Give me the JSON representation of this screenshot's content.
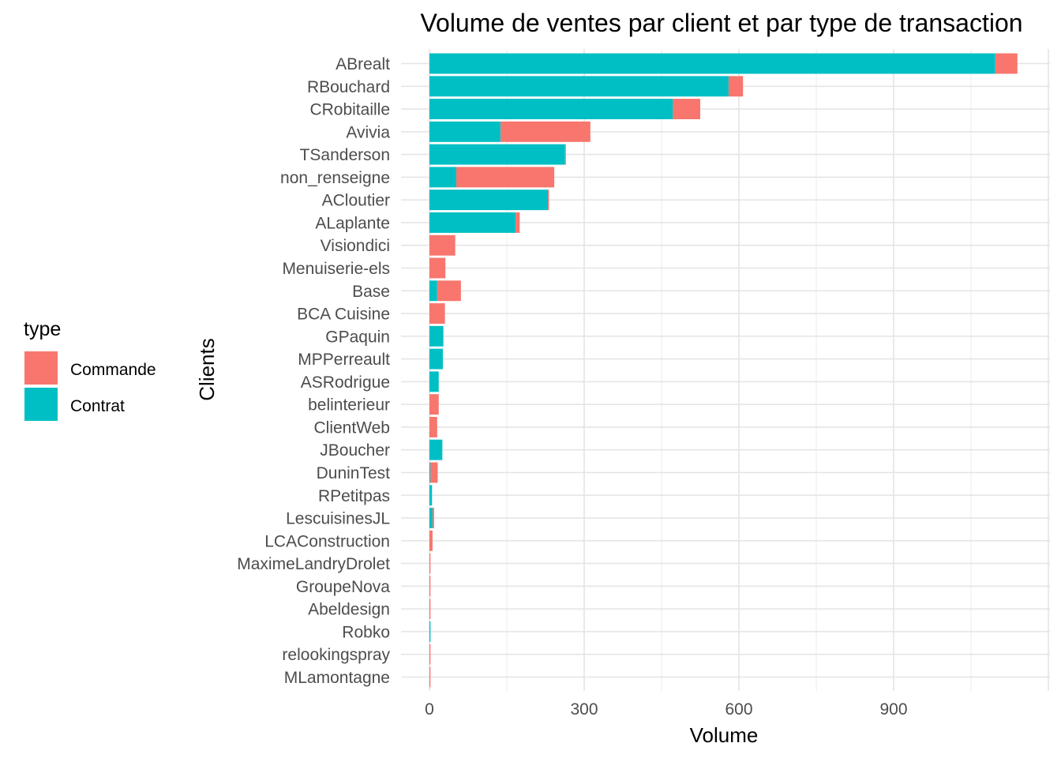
{
  "chart_data": {
    "type": "bar",
    "orientation": "horizontal",
    "stacked": true,
    "title": "Volume de ventes par client et par type de transaction",
    "xlabel": "Volume",
    "ylabel": "Clients",
    "xlim": [
      0,
      1190
    ],
    "x_ticks": [
      0,
      300,
      600,
      900
    ],
    "grid": true,
    "legend": {
      "title": "type",
      "position": "left",
      "entries": [
        {
          "name": "Commande",
          "color": "#F8766D"
        },
        {
          "name": "Contrat",
          "color": "#00BFC4"
        }
      ]
    },
    "categories": [
      "ABrealt",
      "RBouchard",
      "CRobitaille",
      "Avivia",
      "TSanderson",
      "non_renseigne",
      "ACloutier",
      "ALaplante",
      "Visiondici",
      "Menuiserie-els",
      "Base",
      "BCA Cuisine",
      "GPaquin",
      "MPPerreault",
      "ASRodrigue",
      "belinterieur",
      "ClientWeb",
      "JBoucher",
      "DuninTest",
      "RPetitpas",
      "LescuisinesJL",
      "LCAConstruction",
      "MaximeLandryDrolet",
      "GroupeNova",
      "Abeldesign",
      "Robko",
      "relookingspray",
      "MLamontagne"
    ],
    "series": [
      {
        "name": "Contrat",
        "color": "#00BFC4",
        "values": [
          1097,
          580,
          472,
          138,
          263,
          52,
          230,
          167,
          0,
          0,
          15,
          0,
          27,
          26,
          18,
          0,
          0,
          25,
          2,
          5,
          6,
          0,
          0,
          0,
          0,
          2,
          0,
          0
        ]
      },
      {
        "name": "Commande",
        "color": "#F8766D",
        "values": [
          43,
          28,
          53,
          174,
          1,
          190,
          2,
          8,
          50,
          31,
          46,
          30,
          0,
          0,
          0,
          18,
          15,
          0,
          14,
          0,
          3,
          6,
          2,
          2,
          2,
          0,
          2,
          2
        ]
      }
    ]
  }
}
